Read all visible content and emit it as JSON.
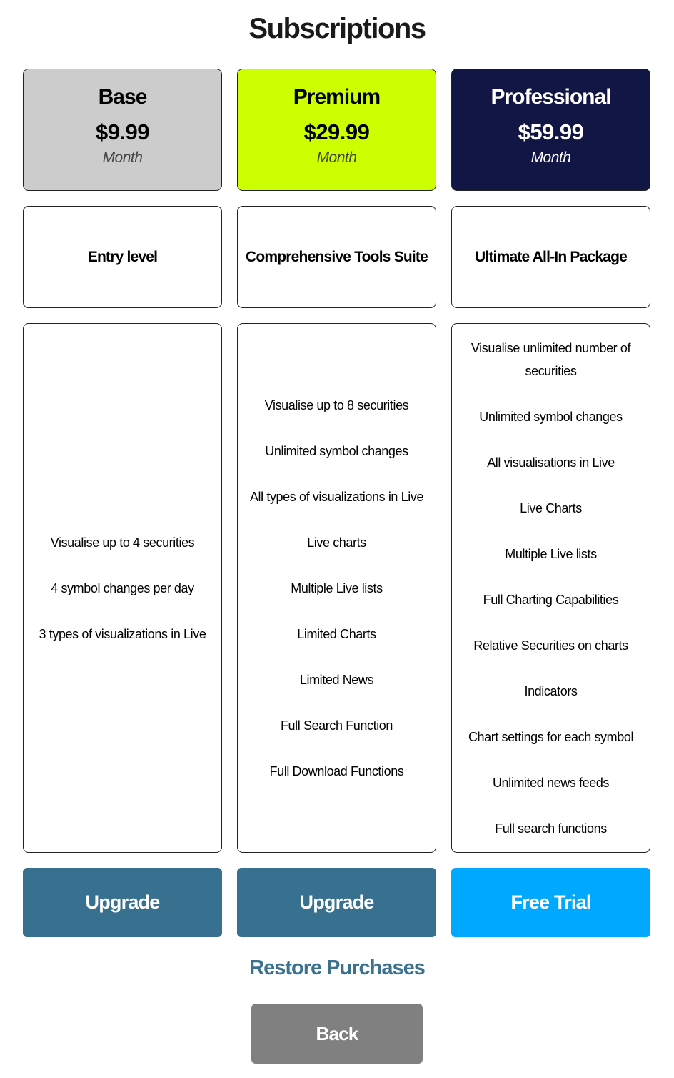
{
  "title": "Subscriptions",
  "plans": [
    {
      "name": "Base",
      "price": "$9.99",
      "period": "Month",
      "tagline": "Entry level",
      "color": "#cccccc",
      "text_color": "#000000",
      "features": [
        "Visualise up to 4 securities",
        "4 symbol changes per day",
        "3 types of visualizations in Live"
      ],
      "button": "Upgrade",
      "button_color": "#38718f"
    },
    {
      "name": "Premium",
      "price": "$29.99",
      "period": "Month",
      "tagline": "Comprehensive Tools Suite",
      "color": "#ccff00",
      "text_color": "#000000",
      "features": [
        "Visualise up to 8 securities",
        "Unlimited symbol changes",
        "All types of visualizations in Live",
        "Live charts",
        "Multiple Live lists",
        "Limited Charts",
        "Limited News",
        "Full Search Function",
        "Full Download Functions"
      ],
      "button": "Upgrade",
      "button_color": "#38718f"
    },
    {
      "name": "Professional",
      "price": "$59.99",
      "period": "Month",
      "tagline": "Ultimate All-In Package",
      "color": "#111644",
      "text_color": "#ffffff",
      "features": [
        "Visualise unlimited number of securities",
        "Unlimited symbol changes",
        "All visualisations in Live",
        "Live Charts",
        "Multiple Live lists",
        "Full Charting Capabilities",
        "Relative Securities on charts",
        "Indicators",
        "Chart settings for each symbol",
        "Unlimited news feeds",
        "Full search functions"
      ],
      "button": "Free Trial",
      "button_color": "#00a8ff"
    }
  ],
  "restore_label": "Restore Purchases",
  "back_label": "Back"
}
